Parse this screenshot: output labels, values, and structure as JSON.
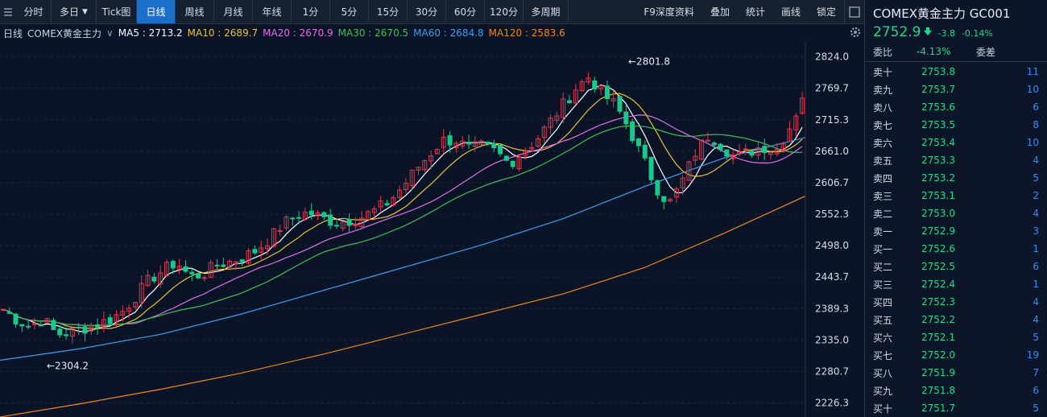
{
  "toolbar": {
    "buttons": [
      "分时",
      "多日",
      "Tick图",
      "日线",
      "周线",
      "月线",
      "年线",
      "1分",
      "5分",
      "15分",
      "30分",
      "60分",
      "120分",
      "多周期"
    ],
    "active": "日线",
    "right_buttons": [
      "F9深度资料",
      "叠加",
      "统计",
      "画线",
      "锁定"
    ]
  },
  "legend": {
    "period": "日线",
    "instrument": "COMEX黄金主力",
    "ma": [
      {
        "label": "MA5 : 2713.2",
        "color": "#ffffff"
      },
      {
        "label": "MA10 : 2689.7",
        "color": "#e9c232"
      },
      {
        "label": "MA20 : 2670.9",
        "color": "#e070e8"
      },
      {
        "label": "MA30 : 2670.5",
        "color": "#3fbf54"
      },
      {
        "label": "MA60 : 2684.8",
        "color": "#3aa0f0"
      },
      {
        "label": "MA120 : 2583.6",
        "color": "#ef8a12"
      }
    ]
  },
  "quote": {
    "title": "COMEX黄金主力  GC001",
    "price": "2752.9",
    "change": "-3.8",
    "change_pct": "-0.14%",
    "ratio_label": "委比",
    "ratio_value": "-4.13%",
    "diff_label": "委差"
  },
  "orderbook": [
    {
      "label": "卖十",
      "price": "2753.8",
      "vol": "11"
    },
    {
      "label": "卖九",
      "price": "2753.7",
      "vol": "10"
    },
    {
      "label": "卖八",
      "price": "2753.6",
      "vol": "6"
    },
    {
      "label": "卖七",
      "price": "2753.5",
      "vol": "8"
    },
    {
      "label": "卖六",
      "price": "2753.4",
      "vol": "10"
    },
    {
      "label": "卖五",
      "price": "2753.3",
      "vol": "4"
    },
    {
      "label": "卖四",
      "price": "2753.2",
      "vol": "5"
    },
    {
      "label": "卖三",
      "price": "2753.1",
      "vol": "2"
    },
    {
      "label": "卖二",
      "price": "2753.0",
      "vol": "4"
    },
    {
      "label": "卖一",
      "price": "2752.9",
      "vol": "3"
    },
    {
      "label": "买一",
      "price": "2752.6",
      "vol": "1"
    },
    {
      "label": "买二",
      "price": "2752.5",
      "vol": "6"
    },
    {
      "label": "买三",
      "price": "2752.4",
      "vol": "1"
    },
    {
      "label": "买四",
      "price": "2752.3",
      "vol": "4"
    },
    {
      "label": "买五",
      "price": "2752.2",
      "vol": "4"
    },
    {
      "label": "买六",
      "price": "2752.1",
      "vol": "5"
    },
    {
      "label": "买七",
      "price": "2752.0",
      "vol": "19"
    },
    {
      "label": "买八",
      "price": "2751.9",
      "vol": "7"
    },
    {
      "label": "买九",
      "price": "2751.8",
      "vol": "6"
    },
    {
      "label": "买十",
      "price": "2751.7",
      "vol": "5"
    }
  ],
  "colors": {
    "up": "#e8334a",
    "down": "#19c88a",
    "accent": "#1c6fc9"
  },
  "chart_data": {
    "type": "line",
    "y_ticks": [
      2824.0,
      2769.7,
      2715.3,
      2661.0,
      2606.7,
      2552.3,
      2498.0,
      2443.7,
      2389.3,
      2335.0,
      2280.7,
      2226.3
    ],
    "ylim": [
      2202,
      2850
    ],
    "high": {
      "label": "←2801.8",
      "value": 2801.8
    },
    "low": {
      "label": "←2304.2",
      "value": 2304.2
    },
    "candle_anchors": [
      2388,
      2370,
      2358,
      2372,
      2345,
      2348,
      2355,
      2362,
      2370,
      2385,
      2412,
      2440,
      2455,
      2470,
      2445,
      2448,
      2465,
      2470,
      2478,
      2490,
      2510,
      2535,
      2550,
      2555,
      2545,
      2538,
      2542,
      2548,
      2560,
      2575,
      2600,
      2630,
      2655,
      2680,
      2680,
      2665,
      2670,
      2660,
      2640,
      2660,
      2680,
      2710,
      2740,
      2770,
      2790,
      2760,
      2740,
      2700,
      2650,
      2600,
      2570,
      2610,
      2660,
      2690,
      2670,
      2650,
      2660,
      2670,
      2660,
      2700,
      2752.9
    ],
    "series": [
      {
        "name": "MA5",
        "color": "#ffffff",
        "end": 2713.2
      },
      {
        "name": "MA10",
        "color": "#e9c232",
        "end": 2689.7
      },
      {
        "name": "MA20",
        "color": "#e070e8",
        "end": 2670.9
      },
      {
        "name": "MA30",
        "color": "#3fbf54",
        "end": 2670.5
      },
      {
        "name": "MA60",
        "color": "#3aa0f0",
        "end": 2684.8
      },
      {
        "name": "MA120",
        "color": "#ef8a12",
        "end": 2583.6
      }
    ],
    "ma60_path": [
      [
        0,
        2300
      ],
      [
        100,
        2320
      ],
      [
        200,
        2345
      ],
      [
        300,
        2380
      ],
      [
        400,
        2420
      ],
      [
        500,
        2460
      ],
      [
        600,
        2500
      ],
      [
        700,
        2545
      ],
      [
        800,
        2600
      ],
      [
        900,
        2650
      ],
      [
        1000,
        2684.8
      ]
    ],
    "ma120_path": [
      [
        0,
        2202
      ],
      [
        100,
        2225
      ],
      [
        200,
        2250
      ],
      [
        300,
        2278
      ],
      [
        400,
        2310
      ],
      [
        500,
        2345
      ],
      [
        600,
        2380
      ],
      [
        700,
        2415
      ],
      [
        800,
        2460
      ],
      [
        900,
        2520
      ],
      [
        1000,
        2583.6
      ]
    ]
  }
}
